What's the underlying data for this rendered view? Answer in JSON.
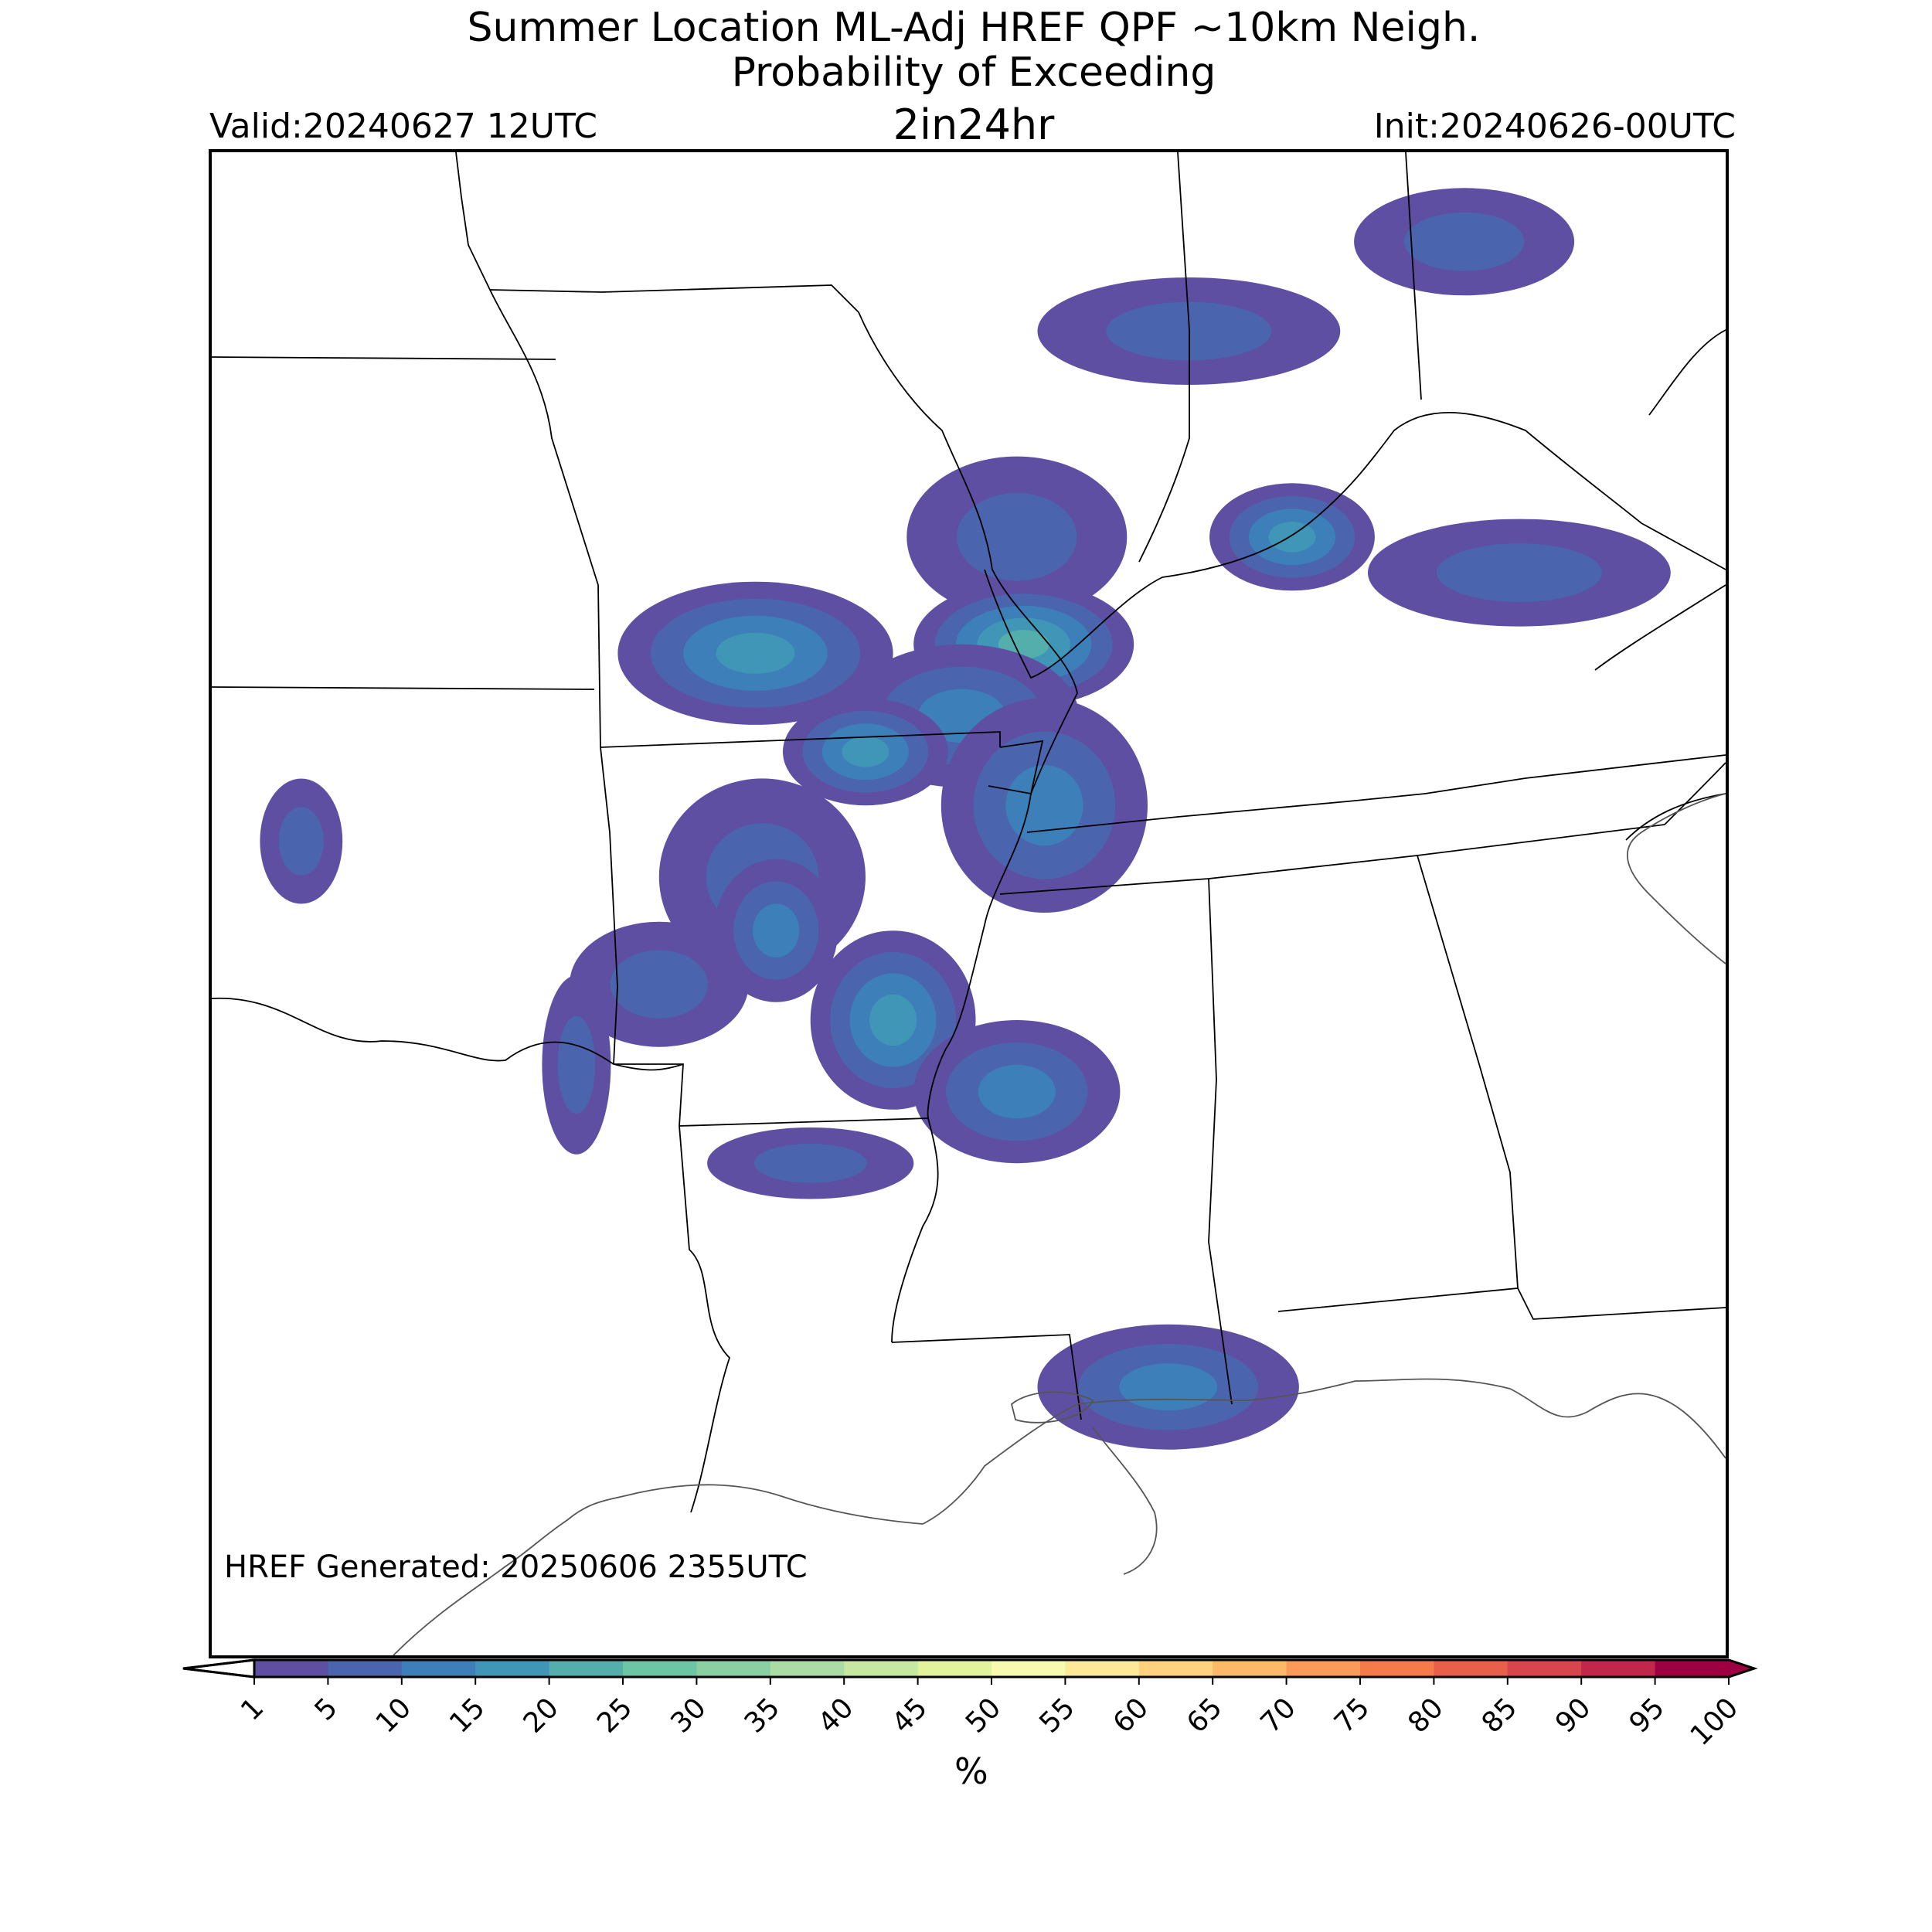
{
  "title": {
    "line1": "Summer Location ML-Adj HREF QPF ~10km Neigh.",
    "line2": "Probability of Exceeding",
    "line3": "2in24hr"
  },
  "valid_label": "Valid:20240627 12UTC",
  "init_label": "Init:20240626-00UTC",
  "generated_label": "HREF Generated: 20250606 2355UTC",
  "colorbar": {
    "unit": "%",
    "ticks": [
      "1",
      "5",
      "10",
      "15",
      "20",
      "25",
      "30",
      "35",
      "40",
      "45",
      "50",
      "55",
      "60",
      "65",
      "70",
      "75",
      "80",
      "85",
      "90",
      "95",
      "100"
    ],
    "colors": [
      "#5e4fa2",
      "#4a65ad",
      "#3d7fb9",
      "#3f96b7",
      "#54aeac",
      "#6cc5a4",
      "#8ad0a3",
      "#aadca4",
      "#c7e8a1",
      "#e3f39b",
      "#f7fbae",
      "#fee999",
      "#fed27f",
      "#fdb868",
      "#fb9b59",
      "#f67b4b",
      "#e8604a",
      "#d8464d",
      "#c0274a",
      "#9e0142"
    ],
    "extend_min_color": "#ffffff",
    "extend_max_color": "#9e0142"
  },
  "map": {
    "boundary_color": "#000000",
    "coastline_color": "#555555",
    "precip_blobs": [
      {
        "lat": 40.0,
        "lon": -88.8,
        "level": 1,
        "rx": 1.6,
        "ry": 0.9
      },
      {
        "lat": 42.3,
        "lon": -86.3,
        "level": 1,
        "rx": 2.2,
        "ry": 0.6
      },
      {
        "lat": 40.0,
        "lon": -84.8,
        "level": 3,
        "rx": 1.2,
        "ry": 0.6
      },
      {
        "lat": 38.8,
        "lon": -88.7,
        "level": 4,
        "rx": 1.6,
        "ry": 0.7
      },
      {
        "lat": 38.0,
        "lon": -89.6,
        "level": 2,
        "rx": 1.7,
        "ry": 0.8
      },
      {
        "lat": 38.7,
        "lon": -92.6,
        "level": 3,
        "rx": 2.0,
        "ry": 0.8
      },
      {
        "lat": 37.0,
        "lon": -88.4,
        "level": 2,
        "rx": 1.5,
        "ry": 1.2
      },
      {
        "lat": 37.6,
        "lon": -91.0,
        "level": 3,
        "rx": 1.2,
        "ry": 0.6
      },
      {
        "lat": 36.2,
        "lon": -92.5,
        "level": 1,
        "rx": 1.5,
        "ry": 1.1
      },
      {
        "lat": 35.0,
        "lon": -94.0,
        "level": 1,
        "rx": 1.3,
        "ry": 0.7
      },
      {
        "lat": 34.6,
        "lon": -90.6,
        "level": 3,
        "rx": 1.2,
        "ry": 1.0
      },
      {
        "lat": 35.6,
        "lon": -92.3,
        "level": 2,
        "rx": 0.9,
        "ry": 0.8
      },
      {
        "lat": 33.8,
        "lon": -88.8,
        "level": 2,
        "rx": 1.5,
        "ry": 0.8
      },
      {
        "lat": 34.1,
        "lon": -95.2,
        "level": 1,
        "rx": 0.5,
        "ry": 1.0
      },
      {
        "lat": 33.0,
        "lon": -91.8,
        "level": 1,
        "rx": 1.5,
        "ry": 0.4
      },
      {
        "lat": 30.5,
        "lon": -86.6,
        "level": 2,
        "rx": 1.9,
        "ry": 0.7
      },
      {
        "lat": 39.6,
        "lon": -81.5,
        "level": 1,
        "rx": 2.2,
        "ry": 0.6
      },
      {
        "lat": 43.3,
        "lon": -82.3,
        "level": 1,
        "rx": 1.6,
        "ry": 0.6
      },
      {
        "lat": 36.6,
        "lon": -99.2,
        "level": 1,
        "rx": 0.6,
        "ry": 0.7
      }
    ]
  }
}
